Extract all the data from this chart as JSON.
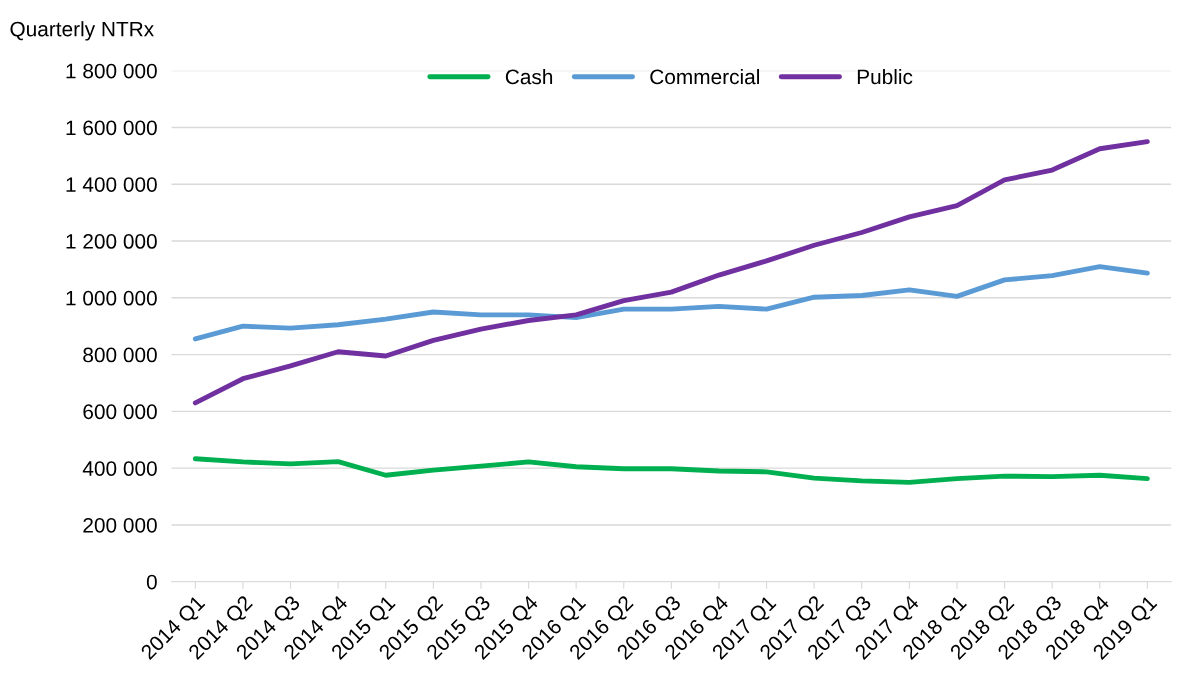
{
  "chart_data": {
    "type": "line",
    "ylabel": "Quarterly NTRx",
    "categories": [
      "2014 Q1",
      "2014 Q2",
      "2014 Q3",
      "2014 Q4",
      "2015 Q1",
      "2015 Q2",
      "2015 Q3",
      "2015 Q4",
      "2016 Q1",
      "2016 Q2",
      "2016 Q3",
      "2016 Q4",
      "2017 Q1",
      "2017 Q2",
      "2017 Q3",
      "2017 Q4",
      "2018 Q1",
      "2018 Q2",
      "2018 Q3",
      "2018 Q4",
      "2019 Q1"
    ],
    "series": [
      {
        "name": "Cash",
        "color": "#00b050",
        "values": [
          433000,
          422000,
          415000,
          423000,
          375000,
          393000,
          407000,
          422000,
          405000,
          398000,
          398000,
          390000,
          387000,
          365000,
          355000,
          350000,
          363000,
          372000,
          370000,
          375000,
          363000
        ]
      },
      {
        "name": "Commercial",
        "color": "#5b9bd5",
        "values": [
          855000,
          900000,
          893000,
          905000,
          925000,
          950000,
          940000,
          940000,
          930000,
          960000,
          960000,
          970000,
          960000,
          1002000,
          1008000,
          1028000,
          1005000,
          1063000,
          1078000,
          1110000,
          1087000
        ]
      },
      {
        "name": "Public",
        "color": "#7030a0",
        "values": [
          630000,
          715000,
          760000,
          810000,
          795000,
          850000,
          890000,
          920000,
          940000,
          990000,
          1020000,
          1080000,
          1130000,
          1185000,
          1230000,
          1285000,
          1325000,
          1415000,
          1450000,
          1525000,
          1550000
        ]
      }
    ],
    "ylim": [
      0,
      1800000
    ],
    "yticks": [
      0,
      {
        "value": 200000,
        "label": "200 000"
      },
      {
        "value": 400000,
        "label": "400 000"
      },
      {
        "value": 600000,
        "label": "600 000"
      },
      {
        "value": 800000,
        "label": "800 000"
      },
      {
        "value": 1000000,
        "label": "1 000 000"
      },
      {
        "value": 1200000,
        "label": "1 200 000"
      },
      {
        "value": 1400000,
        "label": "1 400 000"
      },
      {
        "value": 1600000,
        "label": "1 600 000"
      },
      {
        "value": 1800000,
        "label": "1 800 000"
      }
    ],
    "grid": "y",
    "legend": "top",
    "marker": "none",
    "line_style": "solid"
  }
}
